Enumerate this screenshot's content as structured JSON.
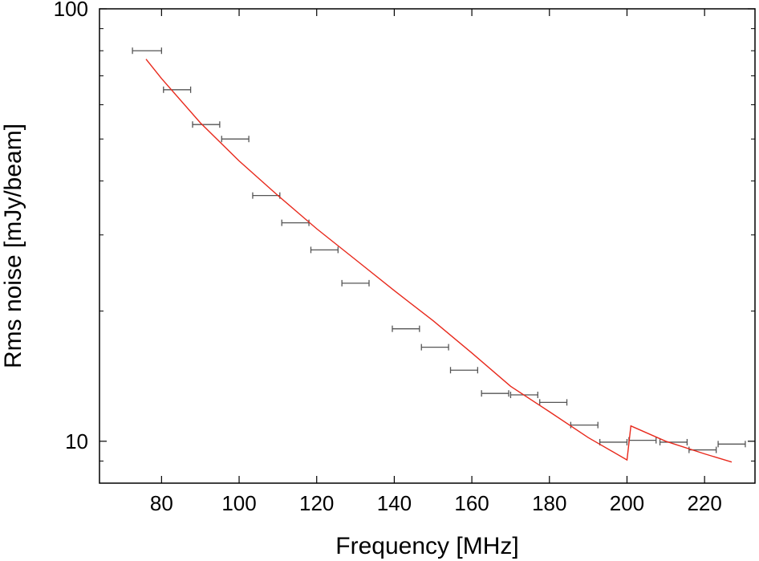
{
  "chart_data": {
    "type": "scatter",
    "xlabel": "Frequency [MHz]",
    "ylabel": "Rms noise [mJy/beam]",
    "xlim": [
      64,
      233
    ],
    "ylim": [
      8,
      100
    ],
    "yscale": "log",
    "grid": false,
    "xticks": [
      80,
      100,
      120,
      140,
      160,
      180,
      200,
      220
    ],
    "xtick_labels": [
      "80",
      "100",
      "120",
      "140",
      "160",
      "180",
      "200",
      "220"
    ],
    "yticks": [
      10,
      100
    ],
    "ytick_labels": [
      "10",
      "100"
    ],
    "colors": {
      "measured": "#555555",
      "model": "#e8291c",
      "axis": "#000000"
    },
    "series": [
      {
        "kind": "errorbar-x",
        "points": [
          {
            "x": 76.0,
            "y": 80.0,
            "xmin": 72.5,
            "xmax": 80.0
          },
          {
            "x": 84.0,
            "y": 65.0,
            "xmin": 80.5,
            "xmax": 87.5
          },
          {
            "x": 91.5,
            "y": 54.0,
            "xmin": 88.0,
            "xmax": 95.0
          },
          {
            "x": 99.0,
            "y": 50.0,
            "xmin": 95.5,
            "xmax": 102.5
          },
          {
            "x": 107.0,
            "y": 37.0,
            "xmin": 103.5,
            "xmax": 110.5
          },
          {
            "x": 114.5,
            "y": 32.0,
            "xmin": 111.0,
            "xmax": 118.0
          },
          {
            "x": 122.0,
            "y": 27.7,
            "xmin": 118.5,
            "xmax": 125.5
          },
          {
            "x": 130.0,
            "y": 23.2,
            "xmin": 126.5,
            "xmax": 133.5
          },
          {
            "x": 143.0,
            "y": 18.2,
            "xmin": 139.5,
            "xmax": 146.5
          },
          {
            "x": 150.5,
            "y": 16.5,
            "xmin": 147.0,
            "xmax": 154.0
          },
          {
            "x": 158.0,
            "y": 14.6,
            "xmin": 154.5,
            "xmax": 161.5
          },
          {
            "x": 166.0,
            "y": 12.9,
            "xmin": 162.5,
            "xmax": 169.5
          },
          {
            "x": 173.5,
            "y": 12.8,
            "xmin": 170.0,
            "xmax": 177.0
          },
          {
            "x": 181.0,
            "y": 12.3,
            "xmin": 177.5,
            "xmax": 184.5
          },
          {
            "x": 189.0,
            "y": 10.9,
            "xmin": 185.5,
            "xmax": 192.5
          },
          {
            "x": 196.5,
            "y": 9.95,
            "xmin": 193.0,
            "xmax": 200.0
          },
          {
            "x": 204.0,
            "y": 10.05,
            "xmin": 200.5,
            "xmax": 207.5
          },
          {
            "x": 212.0,
            "y": 9.95,
            "xmin": 208.5,
            "xmax": 215.5
          },
          {
            "x": 219.5,
            "y": 9.55,
            "xmin": 216.0,
            "xmax": 223.0
          },
          {
            "x": 227.0,
            "y": 9.85,
            "xmin": 223.5,
            "xmax": 230.5
          }
        ]
      },
      {
        "kind": "line",
        "points": [
          {
            "x": 76.0,
            "y": 76.5
          },
          {
            "x": 80.0,
            "y": 69.0
          },
          {
            "x": 90.0,
            "y": 54.5
          },
          {
            "x": 100.0,
            "y": 44.5
          },
          {
            "x": 110.0,
            "y": 37.0
          },
          {
            "x": 120.0,
            "y": 31.0
          },
          {
            "x": 130.0,
            "y": 26.3
          },
          {
            "x": 140.0,
            "y": 22.3
          },
          {
            "x": 150.0,
            "y": 19.0
          },
          {
            "x": 160.0,
            "y": 16.0
          },
          {
            "x": 170.0,
            "y": 13.4
          },
          {
            "x": 180.0,
            "y": 11.7
          },
          {
            "x": 190.0,
            "y": 10.2
          },
          {
            "x": 200.0,
            "y": 9.05
          },
          {
            "x": 201.0,
            "y": 10.85
          },
          {
            "x": 210.0,
            "y": 10.0
          },
          {
            "x": 220.0,
            "y": 9.35
          },
          {
            "x": 227.0,
            "y": 8.95
          }
        ]
      }
    ]
  }
}
